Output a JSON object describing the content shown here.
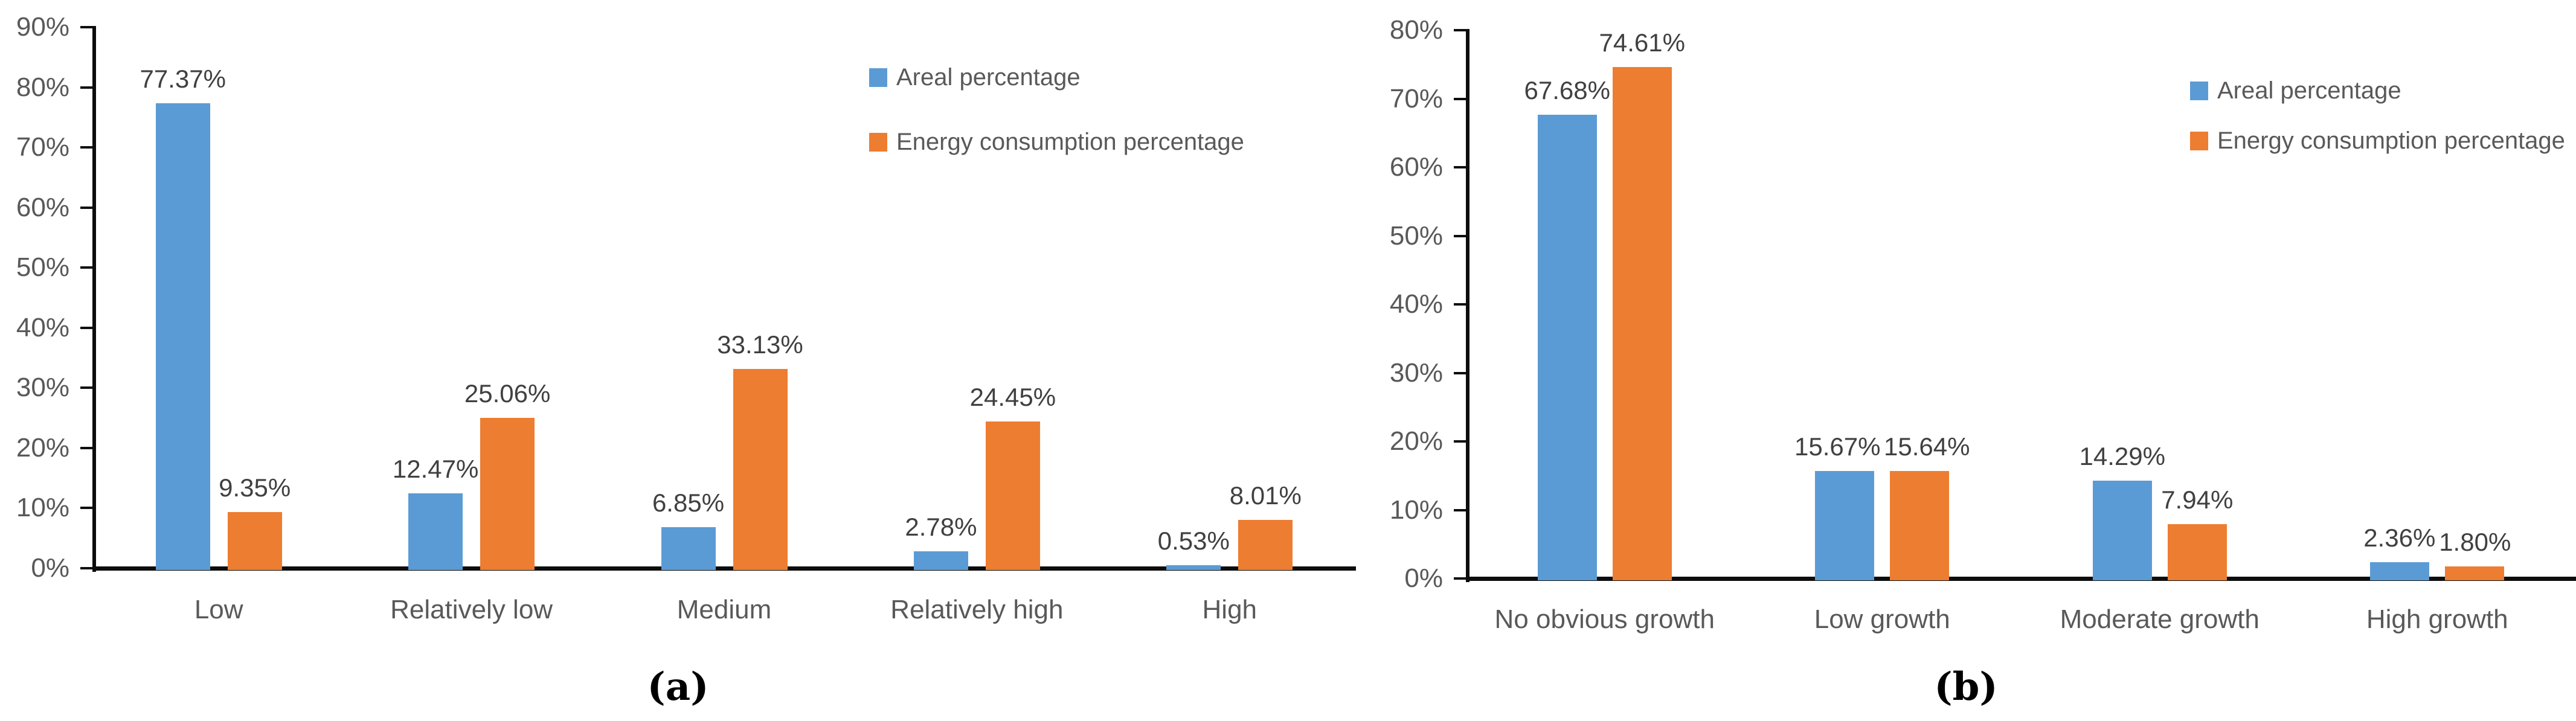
{
  "colors": {
    "areal_series": "#5B9BD5",
    "energy_series": "#ED7D31",
    "axis_line": "#0d0d0d",
    "tick_text": "#595959",
    "data_label_text": "#404040",
    "caption_text": "#000000"
  },
  "chart_data": [
    {
      "id": "a",
      "type": "bar",
      "caption": "(a)",
      "title": "",
      "xlabel": "",
      "ylabel": "",
      "grid": false,
      "legend_position": "top-right",
      "categories": [
        "Low",
        "Relatively low",
        "Medium",
        "Relatively high",
        "High"
      ],
      "series": [
        {
          "name": "Areal percentage",
          "color": "#5B9BD5",
          "values": [
            77.37,
            12.47,
            6.85,
            2.78,
            0.53
          ],
          "labels": [
            "77.37%",
            "12.47%",
            "6.85%",
            "2.78%",
            "0.53%"
          ]
        },
        {
          "name": "Energy consumption percentage",
          "color": "#ED7D31",
          "values": [
            9.35,
            25.06,
            33.13,
            24.45,
            8.01
          ],
          "labels": [
            "9.35%",
            "25.06%",
            "33.13%",
            "24.45%",
            "8.01%"
          ]
        }
      ],
      "ylim": [
        0,
        90
      ],
      "ytick_step": 10,
      "ytick_labels": [
        "0%",
        "10%",
        "20%",
        "30%",
        "40%",
        "50%",
        "60%",
        "70%",
        "80%",
        "90%"
      ]
    },
    {
      "id": "b",
      "type": "bar",
      "caption": "(b)",
      "title": "",
      "xlabel": "",
      "ylabel": "",
      "grid": false,
      "legend_position": "top-right",
      "categories": [
        "No obvious growth",
        "Low growth",
        "Moderate growth",
        "High growth"
      ],
      "series": [
        {
          "name": "Areal percentage",
          "color": "#5B9BD5",
          "values": [
            67.68,
            15.67,
            14.29,
            2.36
          ],
          "labels": [
            "67.68%",
            "15.67%",
            "14.29%",
            "2.36%"
          ]
        },
        {
          "name": "Energy consumption percentage",
          "color": "#ED7D31",
          "values": [
            74.61,
            15.64,
            7.94,
            1.8
          ],
          "labels": [
            "74.61%",
            "15.64%",
            "7.94%",
            "1.80%"
          ]
        }
      ],
      "ylim": [
        0,
        80
      ],
      "ytick_step": 10,
      "ytick_labels": [
        "0%",
        "10%",
        "20%",
        "30%",
        "40%",
        "50%",
        "60%",
        "70%",
        "80%"
      ]
    }
  ]
}
